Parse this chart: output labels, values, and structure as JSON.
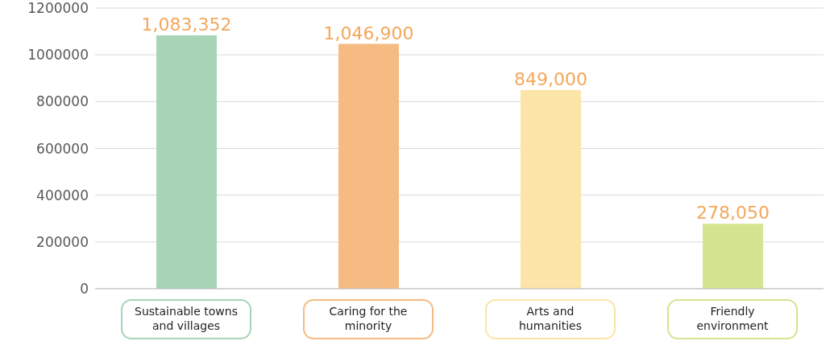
{
  "chart_data": {
    "type": "bar",
    "categories": [
      "Sustainable towns and villages",
      "Caring for the minority",
      "Arts and humanities",
      "Friendly environment"
    ],
    "values": [
      1083352,
      1046900,
      849000,
      278050
    ],
    "value_labels": [
      "1,083,352",
      "1,046,900",
      "849,000",
      "278,050"
    ],
    "colors": [
      "#a8d5b5",
      "#f5bb82",
      "#fde4a8",
      "#d4e490"
    ],
    "ylim": [
      0,
      1200000
    ],
    "yticks": [
      0,
      200000,
      400000,
      600000,
      800000,
      1000000,
      1200000
    ],
    "grid": "y",
    "legend": false
  }
}
